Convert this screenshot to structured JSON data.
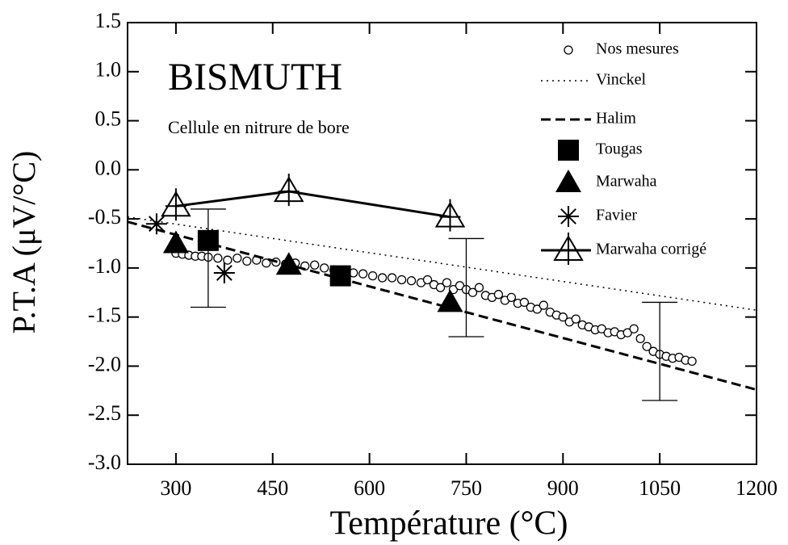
{
  "chart_data": {
    "type": "scatter",
    "title": "BISMUTH",
    "subtitle": "Cellule en nitrure de bore",
    "x_label": "Température (°C)",
    "y_label": "P.T.A (μV/°C)",
    "xlim": [
      225,
      1200
    ],
    "xticks": [
      300,
      450,
      600,
      750,
      900,
      1050,
      1200
    ],
    "ylim": [
      -3.0,
      1.5
    ],
    "yticks": [
      1.5,
      {
        "value": 1,
        "label": "1.0"
      },
      0.5,
      {
        "value": 0,
        "label": "0.0"
      },
      -0.5,
      {
        "value": -1,
        "label": "-1.0"
      },
      -1.5,
      {
        "value": -2,
        "label": "-2.0"
      },
      -2.5,
      {
        "value": -3,
        "label": "-3.0"
      }
    ],
    "legend": "upper right",
    "series": [
      {
        "name": "Nos mesures",
        "color": "#000000",
        "marker": "circle",
        "line": "none",
        "x": [
          300,
          310,
          320,
          330,
          340,
          350,
          365,
          380,
          395,
          410,
          425,
          440,
          455,
          470,
          485,
          500,
          515,
          530,
          545,
          560,
          575,
          590,
          605,
          620,
          635,
          650,
          665,
          680,
          690,
          700,
          710,
          720,
          730,
          740,
          750,
          760,
          770,
          780,
          790,
          800,
          810,
          820,
          830,
          840,
          850,
          860,
          870,
          880,
          890,
          900,
          910,
          920,
          930,
          940,
          950,
          960,
          970,
          980,
          990,
          1000,
          1010,
          1020,
          1030,
          1040,
          1050,
          1060,
          1070,
          1080,
          1090,
          1100
        ],
        "values": [
          -0.85,
          -0.86,
          -0.87,
          -0.88,
          -0.88,
          -0.89,
          -0.9,
          -0.92,
          -0.9,
          -0.93,
          -0.92,
          -0.95,
          -0.94,
          -0.96,
          -0.95,
          -0.98,
          -0.97,
          -1.0,
          -1.02,
          -1.03,
          -1.05,
          -1.06,
          -1.08,
          -1.1,
          -1.1,
          -1.12,
          -1.13,
          -1.15,
          -1.12,
          -1.17,
          -1.2,
          -1.15,
          -1.22,
          -1.18,
          -1.22,
          -1.25,
          -1.2,
          -1.28,
          -1.3,
          -1.27,
          -1.33,
          -1.3,
          -1.36,
          -1.35,
          -1.4,
          -1.42,
          -1.38,
          -1.45,
          -1.48,
          -1.5,
          -1.55,
          -1.52,
          -1.58,
          -1.6,
          -1.63,
          -1.62,
          -1.66,
          -1.65,
          -1.68,
          -1.66,
          -1.62,
          -1.72,
          -1.8,
          -1.85,
          -1.88,
          -1.9,
          -1.92,
          -1.91,
          -1.94,
          -1.95
        ]
      },
      {
        "name": "Vinckel",
        "color": "#000000",
        "marker": "none",
        "line": "dotted",
        "x": [
          225,
          1200
        ],
        "values": [
          -0.48,
          -1.43
        ]
      },
      {
        "name": "Halim",
        "color": "#000000",
        "marker": "none",
        "line": "dashed",
        "x": [
          225,
          1200
        ],
        "values": [
          -0.53,
          -2.24
        ]
      },
      {
        "name": "Tougas",
        "color": "#000000",
        "marker": "square",
        "line": "none",
        "x": [
          350,
          555
        ],
        "values": [
          -0.72,
          -1.08
        ]
      },
      {
        "name": "Marwaha",
        "color": "#000000",
        "marker": "triangle",
        "line": "none",
        "x": [
          300,
          475,
          725
        ],
        "values": [
          -0.75,
          -0.97,
          -1.35
        ]
      },
      {
        "name": "Favier",
        "color": "#000000",
        "marker": "asterisk",
        "line": "none",
        "x": [
          270,
          375
        ],
        "values": [
          -0.55,
          -1.05
        ]
      },
      {
        "name": "Marwaha corrigé",
        "color": "#000000",
        "marker": "triangle-cross",
        "line": "solid",
        "x": [
          300,
          475,
          725
        ],
        "values": [
          -0.37,
          -0.22,
          -0.48
        ]
      }
    ],
    "error_bars": {
      "x": [
        350,
        750,
        1050
      ],
      "values": [
        -0.9,
        -1.2,
        -1.85
      ],
      "errors": [
        0.5,
        0.5,
        0.5
      ]
    }
  }
}
